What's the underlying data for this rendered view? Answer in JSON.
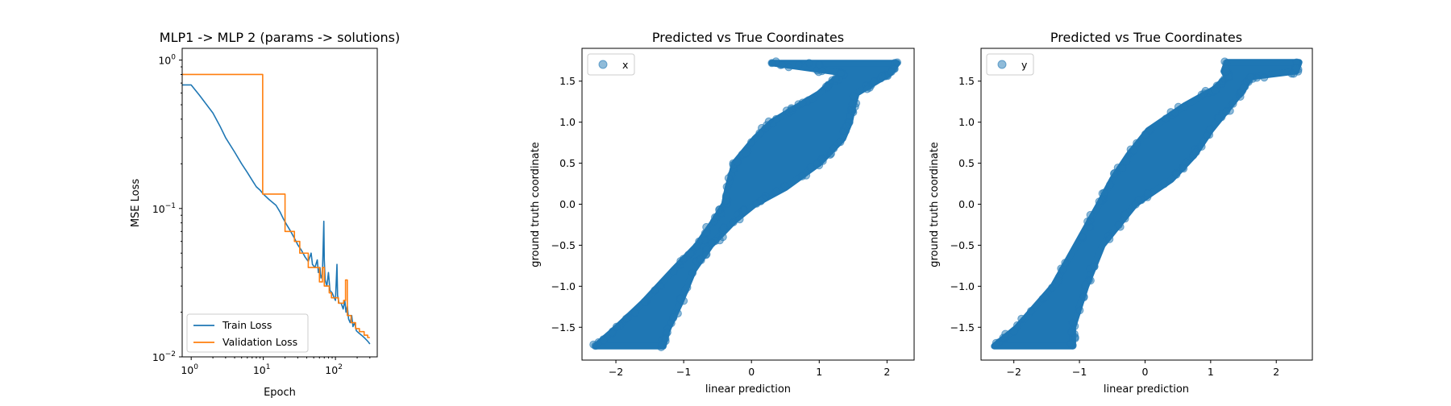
{
  "chart_data": [
    {
      "type": "line",
      "title": "MLP1 -> MLP 2 (params -> solutions)",
      "xlabel": "Epoch",
      "ylabel": "MSE Loss",
      "xscale": "log",
      "yscale": "log",
      "xlim": [
        0.75,
        380
      ],
      "ylim": [
        0.01,
        1.2
      ],
      "x_ticks": [
        {
          "value": 1,
          "base": "10",
          "exp": "0"
        },
        {
          "value": 10,
          "base": "10",
          "exp": "1"
        },
        {
          "value": 100,
          "base": "10",
          "exp": "2"
        }
      ],
      "y_ticks": [
        {
          "value": 0.01,
          "base": "10",
          "exp": "−2"
        },
        {
          "value": 0.1,
          "base": "10",
          "exp": "−1"
        },
        {
          "value": 1,
          "base": "10",
          "exp": "0"
        }
      ],
      "legend": "lower-left",
      "grid": false,
      "series": [
        {
          "name": "Train Loss",
          "color": "#1f77b4",
          "points": [
            [
              0.75,
              0.68
            ],
            [
              1,
              0.68
            ],
            [
              1.3,
              0.58
            ],
            [
              2,
              0.44
            ],
            [
              2.5,
              0.36
            ],
            [
              3,
              0.3
            ],
            [
              4,
              0.24
            ],
            [
              5,
              0.2
            ],
            [
              6,
              0.175
            ],
            [
              7,
              0.155
            ],
            [
              8,
              0.14
            ],
            [
              9,
              0.133
            ],
            [
              10,
              0.125
            ],
            [
              12,
              0.115
            ],
            [
              15,
              0.105
            ],
            [
              17,
              0.095
            ],
            [
              19,
              0.085
            ],
            [
              21,
              0.078
            ],
            [
              24,
              0.07
            ],
            [
              27,
              0.063
            ],
            [
              30,
              0.057
            ],
            [
              34,
              0.052
            ],
            [
              38,
              0.047
            ],
            [
              42,
              0.044
            ],
            [
              46,
              0.05
            ],
            [
              48,
              0.042
            ],
            [
              52,
              0.04
            ],
            [
              56,
              0.045
            ],
            [
              58,
              0.037
            ],
            [
              61,
              0.04
            ],
            [
              63,
              0.034
            ],
            [
              66,
              0.036
            ],
            [
              69,
              0.082
            ],
            [
              70,
              0.045
            ],
            [
              72,
              0.033
            ],
            [
              76,
              0.03
            ],
            [
              80,
              0.037
            ],
            [
              84,
              0.028
            ],
            [
              90,
              0.027
            ],
            [
              96,
              0.025
            ],
            [
              100,
              0.024
            ],
            [
              105,
              0.042
            ],
            [
              107,
              0.026
            ],
            [
              112,
              0.023
            ],
            [
              120,
              0.023
            ],
            [
              128,
              0.021
            ],
            [
              135,
              0.024
            ],
            [
              140,
              0.02
            ],
            [
              146,
              0.022
            ],
            [
              152,
              0.018
            ],
            [
              160,
              0.017
            ],
            [
              168,
              0.019
            ],
            [
              175,
              0.016
            ],
            [
              185,
              0.017
            ],
            [
              195,
              0.015
            ],
            [
              210,
              0.0145
            ],
            [
              230,
              0.014
            ],
            [
              250,
              0.0135
            ],
            [
              270,
              0.013
            ],
            [
              290,
              0.0125
            ],
            [
              300,
              0.0122
            ]
          ]
        },
        {
          "name": "Validation Loss",
          "color": "#ff7f0e",
          "points": [
            [
              0.75,
              0.8
            ],
            [
              9.8,
              0.8
            ],
            [
              9.8,
              0.125
            ],
            [
              20,
              0.125
            ],
            [
              20,
              0.07
            ],
            [
              27,
              0.07
            ],
            [
              27,
              0.06
            ],
            [
              32,
              0.06
            ],
            [
              32,
              0.05
            ],
            [
              42,
              0.05
            ],
            [
              42,
              0.04
            ],
            [
              60,
              0.04
            ],
            [
              60,
              0.032
            ],
            [
              66,
              0.032
            ],
            [
              66,
              0.04
            ],
            [
              70,
              0.04
            ],
            [
              70,
              0.03
            ],
            [
              82,
              0.03
            ],
            [
              82,
              0.027
            ],
            [
              88,
              0.027
            ],
            [
              88,
              0.025
            ],
            [
              110,
              0.025
            ],
            [
              110,
              0.023
            ],
            [
              130,
              0.023
            ],
            [
              130,
              0.024
            ],
            [
              138,
              0.024
            ],
            [
              138,
              0.033
            ],
            [
              146,
              0.033
            ],
            [
              146,
              0.019
            ],
            [
              165,
              0.019
            ],
            [
              165,
              0.017
            ],
            [
              190,
              0.017
            ],
            [
              190,
              0.0155
            ],
            [
              215,
              0.0155
            ],
            [
              215,
              0.0148
            ],
            [
              250,
              0.0148
            ],
            [
              250,
              0.014
            ],
            [
              280,
              0.014
            ],
            [
              280,
              0.0135
            ],
            [
              300,
              0.0135
            ]
          ]
        }
      ]
    },
    {
      "type": "scatter",
      "title": "Predicted vs True Coordinates",
      "xlabel": "linear prediction",
      "ylabel": "ground truth coordinate",
      "xlim": [
        -2.5,
        2.4
      ],
      "ylim": [
        -1.9,
        1.9
      ],
      "x_ticks": [
        "−2",
        "−1",
        "0",
        "1",
        "2"
      ],
      "x_tick_values": [
        -2,
        -1,
        0,
        1,
        2
      ],
      "y_ticks": [
        "−1.5",
        "−1.0",
        "−0.5",
        "0.0",
        "0.5",
        "1.0",
        "1.5"
      ],
      "y_tick_values": [
        -1.5,
        -1.0,
        -0.5,
        0.0,
        0.5,
        1.0,
        1.5
      ],
      "legend": "upper-left",
      "grid": false,
      "series": [
        {
          "name": "x",
          "color": "#1f77b4",
          "band": [
            {
              "y": -1.73,
              "x_lo": -2.3,
              "x_hi": -1.3
            },
            {
              "y": -1.55,
              "x_lo": -2.05,
              "x_hi": -1.25
            },
            {
              "y": -1.2,
              "x_lo": -1.6,
              "x_hi": -1.05
            },
            {
              "y": -0.8,
              "x_lo": -1.15,
              "x_hi": -0.85
            },
            {
              "y": -0.5,
              "x_lo": -0.8,
              "x_hi": -0.6
            },
            {
              "y": -0.2,
              "x_lo": -0.55,
              "x_hi": -0.25
            },
            {
              "y": 0.0,
              "x_lo": -0.4,
              "x_hi": 0.05
            },
            {
              "y": 0.2,
              "x_lo": -0.35,
              "x_hi": 0.5
            },
            {
              "y": 0.5,
              "x_lo": -0.25,
              "x_hi": 1.0
            },
            {
              "y": 0.8,
              "x_lo": 0.05,
              "x_hi": 1.35
            },
            {
              "y": 1.0,
              "x_lo": 0.3,
              "x_hi": 1.45
            },
            {
              "y": 1.2,
              "x_lo": 0.7,
              "x_hi": 1.5
            },
            {
              "y": 1.35,
              "x_lo": 1.0,
              "x_hi": 1.55
            },
            {
              "y": 1.5,
              "x_lo": 1.2,
              "x_hi": 1.85
            },
            {
              "y": 1.6,
              "x_lo": 1.35,
              "x_hi": 2.05
            },
            {
              "y": 1.72,
              "x_lo": 0.3,
              "x_hi": 2.15
            }
          ],
          "outliers": [
            [
              0.3,
              1.72
            ],
            [
              0.45,
              1.7
            ],
            [
              0.55,
              1.67
            ],
            [
              0.7,
              1.7
            ],
            [
              0.85,
              1.72
            ],
            [
              1.0,
              1.7
            ]
          ]
        }
      ]
    },
    {
      "type": "scatter",
      "title": "Predicted vs True Coordinates",
      "xlabel": "linear prediction",
      "ylabel": "ground truth coordinate",
      "xlim": [
        -2.5,
        2.55
      ],
      "ylim": [
        -1.9,
        1.9
      ],
      "x_ticks": [
        "−2",
        "−1",
        "0",
        "1",
        "2"
      ],
      "x_tick_values": [
        -2,
        -1,
        0,
        1,
        2
      ],
      "y_ticks": [
        "−1.5",
        "−1.0",
        "−0.5",
        "0.0",
        "0.5",
        "1.0",
        "1.5"
      ],
      "y_tick_values": [
        -1.5,
        -1.0,
        -0.5,
        0.0,
        0.5,
        1.0,
        1.5
      ],
      "legend": "upper-left",
      "grid": false,
      "series": [
        {
          "name": "y",
          "color": "#1f77b4",
          "band": [
            {
              "y": -1.73,
              "x_lo": -2.3,
              "x_hi": -1.1
            },
            {
              "y": -1.5,
              "x_lo": -1.95,
              "x_hi": -1.1
            },
            {
              "y": -1.0,
              "x_lo": -1.4,
              "x_hi": -0.9
            },
            {
              "y": -0.5,
              "x_lo": -1.05,
              "x_hi": -0.65
            },
            {
              "y": 0.0,
              "x_lo": -0.7,
              "x_hi": -0.15
            },
            {
              "y": 0.3,
              "x_lo": -0.5,
              "x_hi": 0.4
            },
            {
              "y": 0.6,
              "x_lo": -0.25,
              "x_hi": 0.75
            },
            {
              "y": 0.9,
              "x_lo": 0.05,
              "x_hi": 1.0
            },
            {
              "y": 1.2,
              "x_lo": 0.6,
              "x_hi": 1.3
            },
            {
              "y": 1.4,
              "x_lo": 1.05,
              "x_hi": 1.5
            },
            {
              "y": 1.55,
              "x_lo": 1.25,
              "x_hi": 1.6
            },
            {
              "y": 1.62,
              "x_lo": 1.2,
              "x_hi": 2.3
            },
            {
              "y": 1.73,
              "x_lo": 1.25,
              "x_hi": 2.35
            }
          ],
          "outliers": []
        }
      ]
    }
  ]
}
